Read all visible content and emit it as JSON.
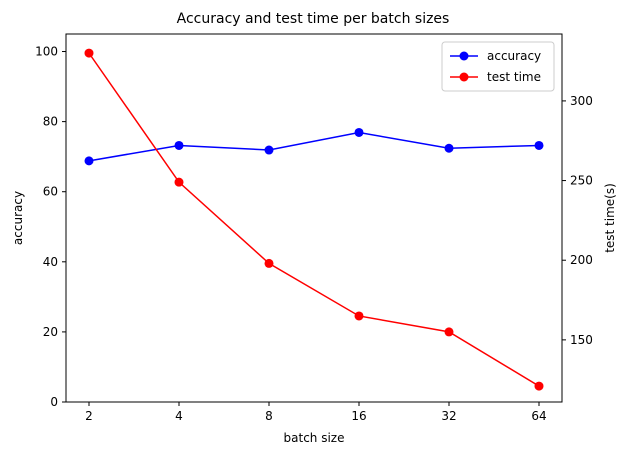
{
  "chart_data": {
    "type": "line",
    "title": "Accuracy and test time per batch sizes",
    "xlabel": "batch size",
    "ylabel_left": "accuracy",
    "ylabel_right": "test time(s)",
    "categories": [
      "2",
      "4",
      "8",
      "16",
      "32",
      "64"
    ],
    "left_ylim": [
      0,
      105
    ],
    "left_yticks": [
      0,
      20,
      40,
      60,
      80,
      100
    ],
    "right_ylim": [
      111,
      342
    ],
    "right_yticks": [
      150,
      200,
      250,
      300
    ],
    "legend_position": "top-right",
    "grid": false,
    "series": [
      {
        "name": "accuracy",
        "axis": "left",
        "color": "#0000ff",
        "values": [
          68.8,
          73.2,
          71.9,
          76.9,
          72.4,
          73.2
        ]
      },
      {
        "name": "test time",
        "axis": "right",
        "color": "#ff0000",
        "values": [
          330,
          249,
          198,
          165,
          155,
          121
        ]
      }
    ]
  }
}
